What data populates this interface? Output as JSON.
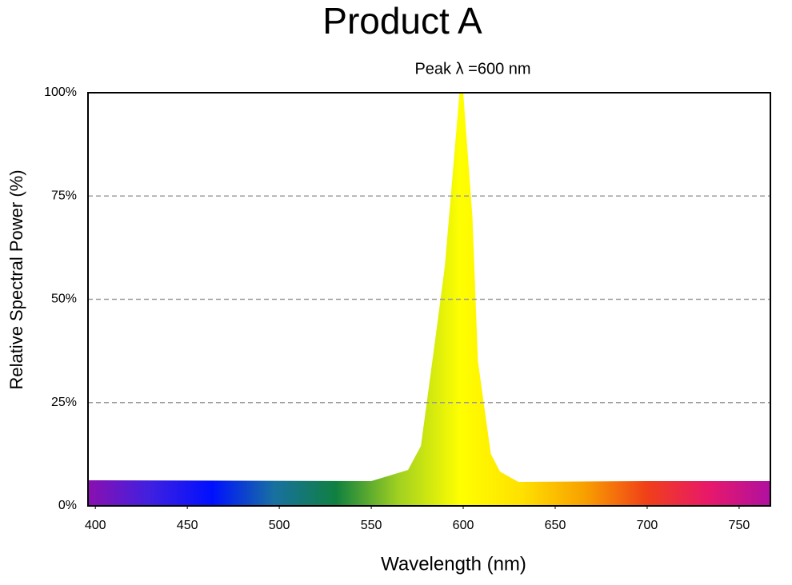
{
  "chart_data": {
    "type": "area",
    "title": "Product A",
    "subtitle": "Peak λ =600 nm",
    "x_label": "Wavelength (nm)",
    "y_label": "Relative Spectral Power (%)",
    "x": [
      396,
      550,
      570,
      577,
      585,
      590,
      598,
      600,
      605,
      608,
      615,
      620,
      630,
      700,
      767
    ],
    "values": [
      6.2,
      6,
      8.7,
      14.5,
      41,
      58,
      100,
      100,
      70,
      35,
      12.6,
      8.3,
      5.8,
      6,
      6
    ],
    "fill_gradient": [
      "#8a10b0",
      "#4020e0",
      "#0010ff",
      "#1870a0",
      "#108040",
      "#a0d020",
      "#ffff00",
      "#ffe000",
      "#f8a000",
      "#f04018",
      "#e8186a",
      "#b010a0"
    ],
    "xlim": [
      396,
      767
    ],
    "xticks": [
      400,
      450,
      500,
      550,
      600,
      650,
      700,
      750
    ],
    "ylim": [
      0,
      100
    ],
    "yticks": [
      {
        "value": 0,
        "label": "0%"
      },
      {
        "value": 25,
        "label": "25%"
      },
      {
        "value": 50,
        "label": "50%"
      },
      {
        "value": 75,
        "label": "75%"
      },
      {
        "value": 100,
        "label": "100%"
      }
    ],
    "grid": true
  }
}
